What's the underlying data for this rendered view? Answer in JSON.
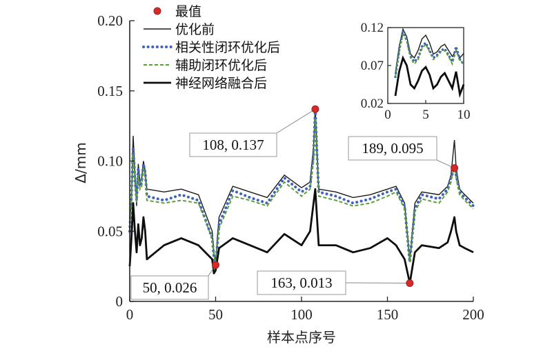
{
  "chart_data": {
    "type": "line",
    "xlabel": "样本点序号",
    "ylabel": "Δ/mm",
    "xlim": [
      0,
      200
    ],
    "ylim": [
      0,
      0.2
    ],
    "xticks": [
      "0",
      "50",
      "100",
      "150",
      "200"
    ],
    "yticks": [
      "0",
      "0.05",
      "0.10",
      "0.15",
      "0.20"
    ],
    "legend": {
      "placement": "top-center",
      "entries": [
        "最值",
        "优化前",
        "相关性闭环优化后",
        "辅助闭环优化后",
        "神经网络融合后"
      ]
    },
    "colors": {
      "extreme": "#d42a2a",
      "before": "#1a1a1a",
      "corr": "#3f63b8",
      "aux": "#5a9e3a",
      "nn": "#0d0d0d"
    },
    "series": [
      {
        "name": "优化前",
        "style": "thin-solid",
        "x": [
          0,
          1,
          2,
          3,
          4,
          5,
          6,
          7,
          8,
          9,
          10,
          20,
          30,
          40,
          48,
          49,
          50,
          51,
          52,
          60,
          70,
          80,
          90,
          100,
          105,
          107,
          108,
          109,
          110,
          120,
          130,
          140,
          150,
          155,
          160,
          163,
          166,
          170,
          180,
          185,
          187,
          189,
          190,
          192,
          195,
          200
        ],
        "y": [
          0.055,
          0.075,
          0.118,
          0.092,
          0.068,
          0.098,
          0.085,
          0.088,
          0.1,
          0.093,
          0.08,
          0.078,
          0.08,
          0.076,
          0.05,
          0.035,
          0.028,
          0.045,
          0.06,
          0.082,
          0.078,
          0.074,
          0.09,
          0.081,
          0.085,
          0.11,
          0.138,
          0.11,
          0.08,
          0.078,
          0.074,
          0.076,
          0.08,
          0.082,
          0.07,
          0.03,
          0.07,
          0.078,
          0.076,
          0.082,
          0.09,
          0.115,
          0.095,
          0.08,
          0.076,
          0.07
        ]
      },
      {
        "name": "相关性闭环优化后",
        "style": "blue-dotted",
        "x": [
          0,
          1,
          2,
          3,
          4,
          5,
          6,
          7,
          8,
          9,
          10,
          20,
          30,
          40,
          48,
          49,
          50,
          51,
          52,
          60,
          70,
          80,
          90,
          100,
          105,
          107,
          108,
          109,
          110,
          120,
          130,
          140,
          150,
          155,
          160,
          163,
          166,
          170,
          180,
          185,
          187,
          189,
          190,
          192,
          195,
          200
        ],
        "y": [
          0.05,
          0.075,
          0.11,
          0.088,
          0.072,
          0.095,
          0.082,
          0.085,
          0.098,
          0.092,
          0.075,
          0.072,
          0.076,
          0.072,
          0.045,
          0.032,
          0.026,
          0.04,
          0.055,
          0.079,
          0.074,
          0.07,
          0.088,
          0.078,
          0.082,
          0.105,
          0.137,
          0.105,
          0.078,
          0.075,
          0.07,
          0.073,
          0.078,
          0.08,
          0.068,
          0.028,
          0.066,
          0.076,
          0.073,
          0.08,
          0.088,
          0.095,
          0.09,
          0.078,
          0.074,
          0.068
        ]
      },
      {
        "name": "辅助闭环优化后",
        "style": "green-dashed",
        "x": [
          0,
          1,
          2,
          3,
          4,
          5,
          6,
          7,
          8,
          9,
          10,
          20,
          30,
          40,
          48,
          49,
          50,
          51,
          52,
          60,
          70,
          80,
          90,
          100,
          105,
          107,
          108,
          109,
          110,
          120,
          130,
          140,
          150,
          155,
          160,
          163,
          166,
          170,
          180,
          185,
          187,
          189,
          190,
          192,
          195,
          200
        ],
        "y": [
          0.05,
          0.07,
          0.105,
          0.085,
          0.07,
          0.09,
          0.08,
          0.082,
          0.095,
          0.09,
          0.072,
          0.07,
          0.072,
          0.07,
          0.045,
          0.033,
          0.028,
          0.04,
          0.052,
          0.075,
          0.072,
          0.068,
          0.085,
          0.075,
          0.08,
          0.1,
          0.13,
          0.1,
          0.075,
          0.072,
          0.068,
          0.07,
          0.075,
          0.078,
          0.066,
          0.028,
          0.064,
          0.073,
          0.07,
          0.078,
          0.085,
          0.098,
          0.088,
          0.076,
          0.072,
          0.066
        ]
      },
      {
        "name": "神经网络融合后",
        "style": "thick-solid",
        "x": [
          0,
          1,
          2,
          3,
          4,
          5,
          6,
          7,
          8,
          9,
          10,
          20,
          30,
          40,
          48,
          49,
          50,
          51,
          52,
          60,
          70,
          80,
          90,
          100,
          105,
          107,
          108,
          109,
          110,
          120,
          130,
          140,
          150,
          155,
          160,
          163,
          166,
          170,
          180,
          185,
          187,
          189,
          190,
          192,
          195,
          200
        ],
        "y": [
          0.025,
          0.045,
          0.07,
          0.05,
          0.035,
          0.055,
          0.04,
          0.045,
          0.06,
          0.05,
          0.03,
          0.04,
          0.045,
          0.04,
          0.03,
          0.02,
          0.022,
          0.03,
          0.038,
          0.045,
          0.04,
          0.035,
          0.048,
          0.04,
          0.05,
          0.07,
          0.08,
          0.06,
          0.04,
          0.04,
          0.035,
          0.038,
          0.045,
          0.04,
          0.03,
          0.013,
          0.035,
          0.04,
          0.038,
          0.042,
          0.05,
          0.06,
          0.05,
          0.04,
          0.038,
          0.035
        ]
      }
    ],
    "extremes": [
      {
        "x": 108,
        "y": 0.137,
        "label": "108, 0.137"
      },
      {
        "x": 189,
        "y": 0.095,
        "label": "189, 0.095"
      },
      {
        "x": 50,
        "y": 0.026,
        "label": "50, 0.026"
      },
      {
        "x": 163,
        "y": 0.013,
        "label": "163, 0.013"
      }
    ],
    "inset": {
      "xlim": [
        0,
        10
      ],
      "ylim": [
        0.02,
        0.12
      ],
      "xticks": [
        "0",
        "5",
        "10"
      ],
      "yticks": [
        "0.02",
        "0.07",
        "0.12"
      ],
      "series": [
        {
          "name": "优化前",
          "x": [
            1,
            1.5,
            2,
            2.5,
            3,
            3.5,
            4,
            4.5,
            5,
            5.5,
            6,
            6.5,
            7,
            7.5,
            8,
            8.5,
            9,
            9.5,
            10
          ],
          "y": [
            0.06,
            0.095,
            0.118,
            0.108,
            0.085,
            0.08,
            0.09,
            0.105,
            0.11,
            0.1,
            0.085,
            0.088,
            0.095,
            0.098,
            0.09,
            0.082,
            0.09,
            0.08,
            0.086
          ]
        },
        {
          "name": "相关性闭环优化后",
          "x": [
            1,
            1.5,
            2,
            2.5,
            3,
            3.5,
            4,
            4.5,
            5,
            5.5,
            6,
            6.5,
            7,
            7.5,
            8,
            8.5,
            9,
            9.5,
            10
          ],
          "y": [
            0.055,
            0.09,
            0.115,
            0.105,
            0.082,
            0.075,
            0.08,
            0.095,
            0.1,
            0.09,
            0.08,
            0.084,
            0.09,
            0.092,
            0.084,
            0.075,
            0.095,
            0.078,
            0.072
          ]
        },
        {
          "name": "辅助闭环优化后",
          "x": [
            1,
            1.5,
            2,
            2.5,
            3,
            3.5,
            4,
            4.5,
            5,
            5.5,
            6,
            6.5,
            7,
            7.5,
            8,
            8.5,
            9,
            9.5,
            10
          ],
          "y": [
            0.055,
            0.088,
            0.112,
            0.102,
            0.08,
            0.072,
            0.078,
            0.092,
            0.098,
            0.088,
            0.078,
            0.082,
            0.088,
            0.09,
            0.082,
            0.072,
            0.09,
            0.076,
            0.074
          ]
        },
        {
          "name": "神经网络融合后",
          "x": [
            1,
            1.5,
            2,
            2.5,
            3,
            3.5,
            4,
            4.5,
            5,
            5.5,
            6,
            6.5,
            7,
            7.5,
            8,
            8.5,
            9,
            9.5,
            10
          ],
          "y": [
            0.03,
            0.062,
            0.08,
            0.07,
            0.045,
            0.04,
            0.05,
            0.063,
            0.068,
            0.058,
            0.04,
            0.045,
            0.055,
            0.06,
            0.05,
            0.04,
            0.062,
            0.032,
            0.045
          ]
        }
      ]
    }
  }
}
